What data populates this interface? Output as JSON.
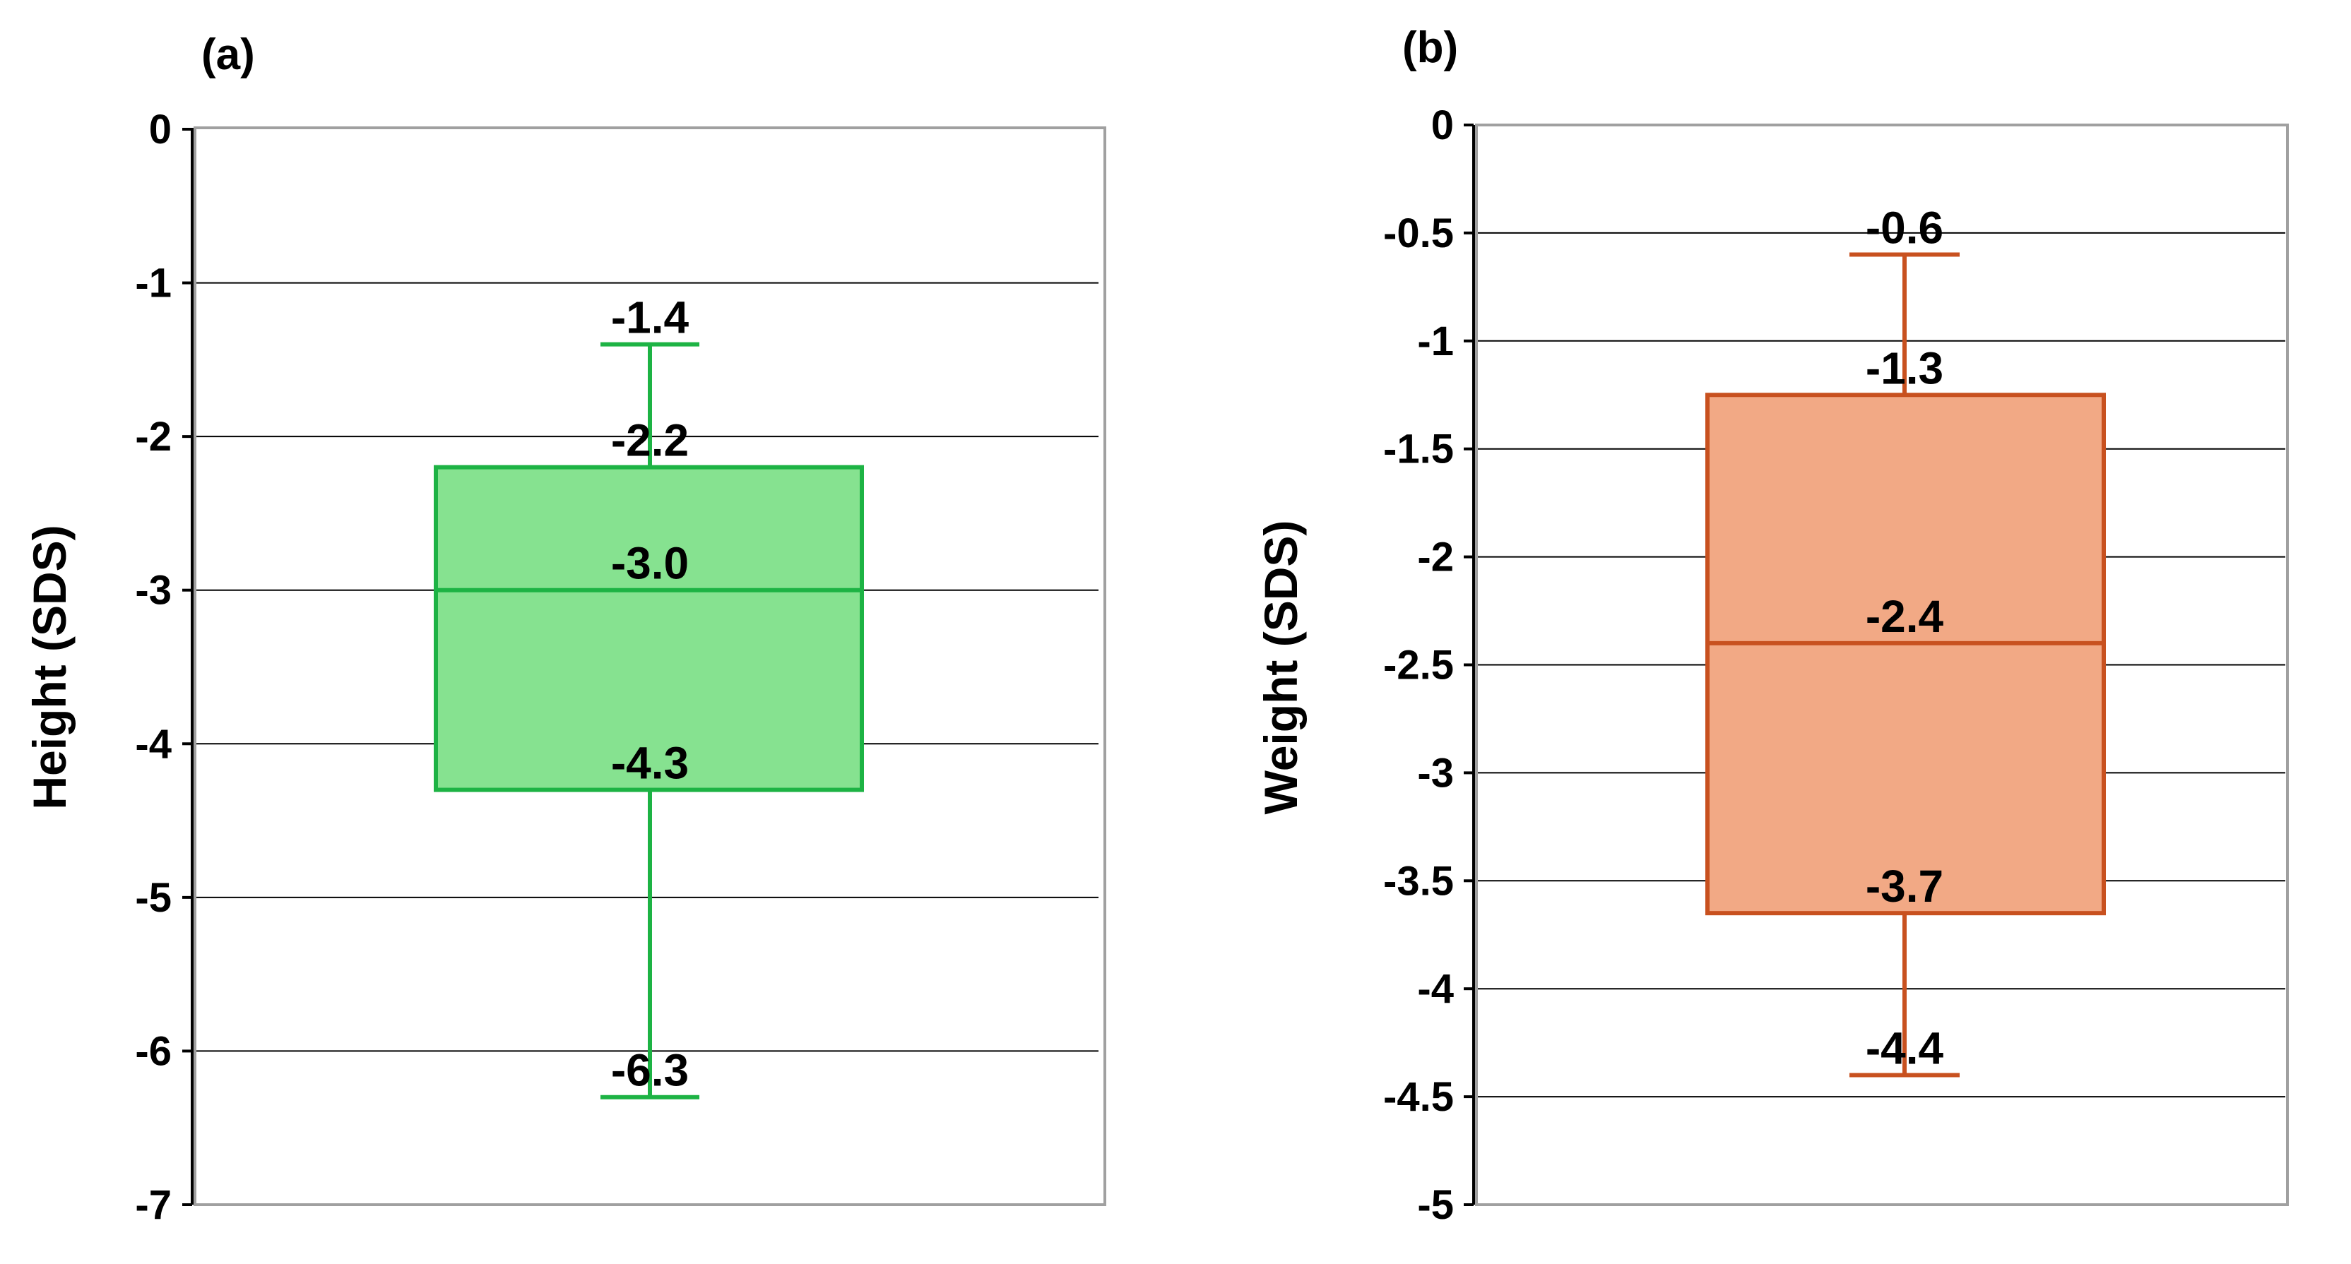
{
  "chart_data": [
    {
      "type": "box",
      "panel_label": "(a)",
      "ylabel": "Height (SDS)",
      "ylim": [
        -7,
        0
      ],
      "yticks": [
        {
          "value": 0,
          "label": "0"
        },
        {
          "value": -1,
          "label": "-1"
        },
        {
          "value": -2,
          "label": "-2"
        },
        {
          "value": -3,
          "label": "-3"
        },
        {
          "value": -4,
          "label": "-4"
        },
        {
          "value": -5,
          "label": "-5"
        },
        {
          "value": -6,
          "label": "-6"
        },
        {
          "value": -7,
          "label": "-7"
        }
      ],
      "grid": true,
      "color": "#1db344",
      "fill": "#86e290",
      "box": {
        "max": -1.4,
        "q3": -2.2,
        "median": -3.0,
        "q1": -4.3,
        "min": -6.3
      },
      "value_labels": {
        "max": "-1.4",
        "q3": "-2.2",
        "median": "-3.0",
        "q1": "-4.3",
        "min": "-6.3"
      }
    },
    {
      "type": "box",
      "panel_label": "(b)",
      "ylabel": "Weight (SDS)",
      "ylim": [
        -5,
        0
      ],
      "yticks": [
        {
          "value": 0,
          "label": "0"
        },
        {
          "value": -0.5,
          "label": "-0.5"
        },
        {
          "value": -1,
          "label": "-1"
        },
        {
          "value": -1.5,
          "label": "-1.5"
        },
        {
          "value": -2,
          "label": "-2"
        },
        {
          "value": -2.5,
          "label": "-2.5"
        },
        {
          "value": -3,
          "label": "-3"
        },
        {
          "value": -3.5,
          "label": "-3.5"
        },
        {
          "value": -4,
          "label": "-4"
        },
        {
          "value": -4.5,
          "label": "-4.5"
        },
        {
          "value": -5,
          "label": "-5"
        }
      ],
      "grid": true,
      "color": "#c8511f",
      "fill": "#f2a985",
      "box": {
        "max": -0.6,
        "q3": -1.25,
        "median": -2.4,
        "q1": -3.65,
        "min": -4.4
      },
      "value_labels": {
        "max": "-0.6",
        "q3": "-1.3",
        "median": "-2.4",
        "q1": "-3.7",
        "min": "-4.4"
      }
    }
  ]
}
